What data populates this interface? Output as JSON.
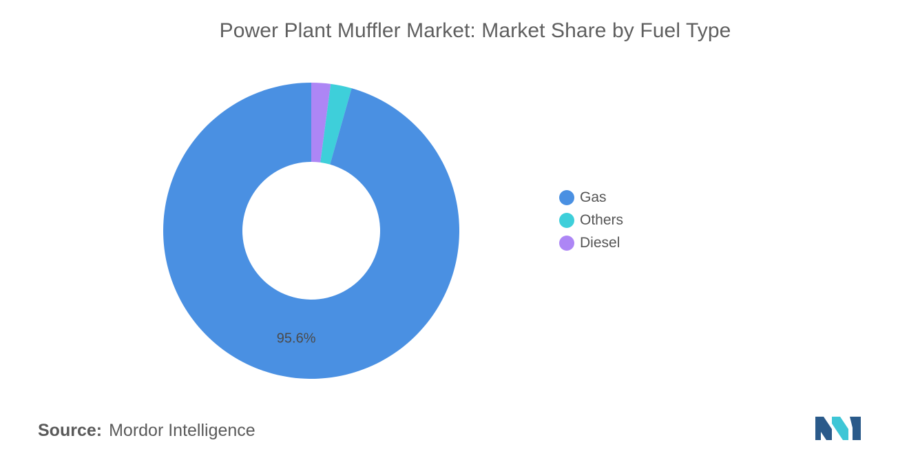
{
  "chart_data": {
    "type": "pie",
    "title": "Power Plant Muffler Market: Market Share by Fuel Type",
    "categories": [
      "Gas",
      "Others",
      "Diesel"
    ],
    "values": [
      95.6,
      2.3,
      2.1
    ],
    "colors": [
      "#4a90e2",
      "#3ecfda",
      "#ad86f5"
    ],
    "data_labels": [
      "95.6%",
      "",
      ""
    ],
    "donut": true,
    "legend_position": "right"
  },
  "source": {
    "label": "Source:",
    "value": "Mordor Intelligence"
  },
  "logo": {
    "icon": "mordor-intelligence-logo",
    "colors": [
      "#2a5a8a",
      "#3ec6d6"
    ]
  }
}
